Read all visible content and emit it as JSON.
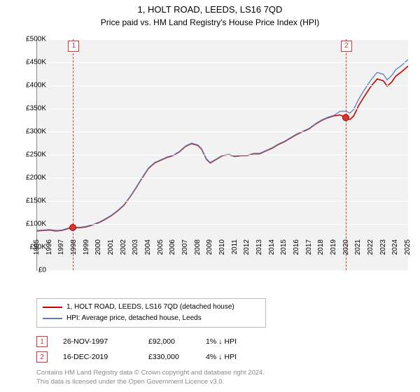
{
  "title": "1, HOLT ROAD, LEEDS, LS16 7QD",
  "subtitle": "Price paid vs. HM Land Registry's House Price Index (HPI)",
  "chart": {
    "type": "line",
    "background_color": "#f2f2f2",
    "grid_color": "#ffffff",
    "axis_color": "#888888",
    "font_size_axis": 10,
    "ylim": [
      0,
      500000
    ],
    "ytick_step": 50000,
    "yticks": [
      "£0",
      "£50K",
      "£100K",
      "£150K",
      "£200K",
      "£250K",
      "£300K",
      "£350K",
      "£400K",
      "£450K",
      "£500K"
    ],
    "xlim": [
      1995,
      2025
    ],
    "xticks": [
      1995,
      1996,
      1997,
      1998,
      1999,
      2000,
      2001,
      2002,
      2003,
      2004,
      2005,
      2006,
      2007,
      2008,
      2009,
      2010,
      2011,
      2012,
      2013,
      2014,
      2015,
      2016,
      2017,
      2018,
      2019,
      2020,
      2021,
      2022,
      2023,
      2024,
      2025
    ],
    "series": [
      {
        "label": "1, HOLT ROAD, LEEDS, LS16 7QD (detached house)",
        "color": "#cc0000",
        "line_width": 1.6,
        "points": [
          [
            1995,
            85000
          ],
          [
            1995.5,
            86000
          ],
          [
            1996,
            87000
          ],
          [
            1996.5,
            85000
          ],
          [
            1997,
            86000
          ],
          [
            1997.5,
            90000
          ],
          [
            1998,
            92000
          ],
          [
            1998.5,
            92000
          ],
          [
            1999,
            94000
          ],
          [
            1999.5,
            98000
          ],
          [
            2000,
            103000
          ],
          [
            2000.5,
            110000
          ],
          [
            2001,
            118000
          ],
          [
            2001.5,
            128000
          ],
          [
            2002,
            140000
          ],
          [
            2002.5,
            158000
          ],
          [
            2003,
            178000
          ],
          [
            2003.5,
            200000
          ],
          [
            2004,
            220000
          ],
          [
            2004.5,
            232000
          ],
          [
            2005,
            238000
          ],
          [
            2005.5,
            244000
          ],
          [
            2006,
            248000
          ],
          [
            2006.5,
            256000
          ],
          [
            2007,
            268000
          ],
          [
            2007.5,
            274000
          ],
          [
            2008,
            270000
          ],
          [
            2008.3,
            262000
          ],
          [
            2008.7,
            240000
          ],
          [
            2009,
            232000
          ],
          [
            2009.5,
            240000
          ],
          [
            2010,
            248000
          ],
          [
            2010.5,
            250000
          ],
          [
            2011,
            246000
          ],
          [
            2011.5,
            248000
          ],
          [
            2012,
            248000
          ],
          [
            2012.5,
            252000
          ],
          [
            2013,
            252000
          ],
          [
            2013.5,
            258000
          ],
          [
            2014,
            264000
          ],
          [
            2014.5,
            272000
          ],
          [
            2015,
            278000
          ],
          [
            2015.5,
            286000
          ],
          [
            2016,
            294000
          ],
          [
            2016.5,
            300000
          ],
          [
            2017,
            306000
          ],
          [
            2017.5,
            316000
          ],
          [
            2018,
            324000
          ],
          [
            2018.5,
            330000
          ],
          [
            2019,
            334000
          ],
          [
            2019.5,
            336000
          ],
          [
            2020,
            330000
          ],
          [
            2020.3,
            326000
          ],
          [
            2020.6,
            334000
          ],
          [
            2021,
            356000
          ],
          [
            2021.5,
            378000
          ],
          [
            2022,
            398000
          ],
          [
            2022.5,
            414000
          ],
          [
            2023,
            410000
          ],
          [
            2023.3,
            398000
          ],
          [
            2023.7,
            408000
          ],
          [
            2024,
            420000
          ],
          [
            2024.5,
            430000
          ],
          [
            2025,
            442000
          ]
        ]
      },
      {
        "label": "HPI: Average price, detached house, Leeds",
        "color": "#5b7fb3",
        "line_width": 1.3,
        "points": [
          [
            1995,
            86000
          ],
          [
            1995.5,
            87000
          ],
          [
            1996,
            88000
          ],
          [
            1996.5,
            86000
          ],
          [
            1997,
            87000
          ],
          [
            1997.5,
            91000
          ],
          [
            1998,
            93000
          ],
          [
            1998.5,
            93000
          ],
          [
            1999,
            95000
          ],
          [
            1999.5,
            99000
          ],
          [
            2000,
            104000
          ],
          [
            2000.5,
            111000
          ],
          [
            2001,
            119000
          ],
          [
            2001.5,
            129000
          ],
          [
            2002,
            141000
          ],
          [
            2002.5,
            159000
          ],
          [
            2003,
            179000
          ],
          [
            2003.5,
            201000
          ],
          [
            2004,
            221000
          ],
          [
            2004.5,
            233000
          ],
          [
            2005,
            239000
          ],
          [
            2005.5,
            245000
          ],
          [
            2006,
            249000
          ],
          [
            2006.5,
            257000
          ],
          [
            2007,
            269000
          ],
          [
            2007.5,
            275000
          ],
          [
            2008,
            271000
          ],
          [
            2008.3,
            263000
          ],
          [
            2008.7,
            241000
          ],
          [
            2009,
            233000
          ],
          [
            2009.5,
            241000
          ],
          [
            2010,
            249000
          ],
          [
            2010.5,
            251000
          ],
          [
            2011,
            247000
          ],
          [
            2011.5,
            249000
          ],
          [
            2012,
            249000
          ],
          [
            2012.5,
            253000
          ],
          [
            2013,
            253000
          ],
          [
            2013.5,
            259000
          ],
          [
            2014,
            265000
          ],
          [
            2014.5,
            273000
          ],
          [
            2015,
            279000
          ],
          [
            2015.5,
            287000
          ],
          [
            2016,
            295000
          ],
          [
            2016.5,
            301000
          ],
          [
            2017,
            307000
          ],
          [
            2017.5,
            317000
          ],
          [
            2018,
            325000
          ],
          [
            2018.5,
            331000
          ],
          [
            2019,
            335000
          ],
          [
            2019.5,
            344000
          ],
          [
            2020,
            344000
          ],
          [
            2020.3,
            340000
          ],
          [
            2020.6,
            348000
          ],
          [
            2021,
            370000
          ],
          [
            2021.5,
            392000
          ],
          [
            2022,
            412000
          ],
          [
            2022.5,
            428000
          ],
          [
            2023,
            424000
          ],
          [
            2023.3,
            412000
          ],
          [
            2023.7,
            422000
          ],
          [
            2024,
            434000
          ],
          [
            2024.5,
            444000
          ],
          [
            2025,
            456000
          ]
        ]
      }
    ],
    "markers": [
      {
        "n": 1,
        "x": 1997.9,
        "y": 92000
      },
      {
        "n": 2,
        "x": 2019.96,
        "y": 330000
      }
    ]
  },
  "legend_title_fontsize": 10,
  "events": [
    {
      "n": "1",
      "date": "26-NOV-1997",
      "price": "£92,000",
      "pct": "1%",
      "dir": "↓",
      "vs": "HPI"
    },
    {
      "n": "2",
      "date": "16-DEC-2019",
      "price": "£330,000",
      "pct": "4%",
      "dir": "↓",
      "vs": "HPI"
    }
  ],
  "footer_line1": "Contains HM Land Registry data © Crown copyright and database right 2024.",
  "footer_line2": "This data is licensed under the Open Government Licence v3.0.",
  "colors": {
    "marker_border": "#d33",
    "property": "#cc0000",
    "hpi": "#5b7fb3",
    "footer_text": "#8a8a8a"
  }
}
